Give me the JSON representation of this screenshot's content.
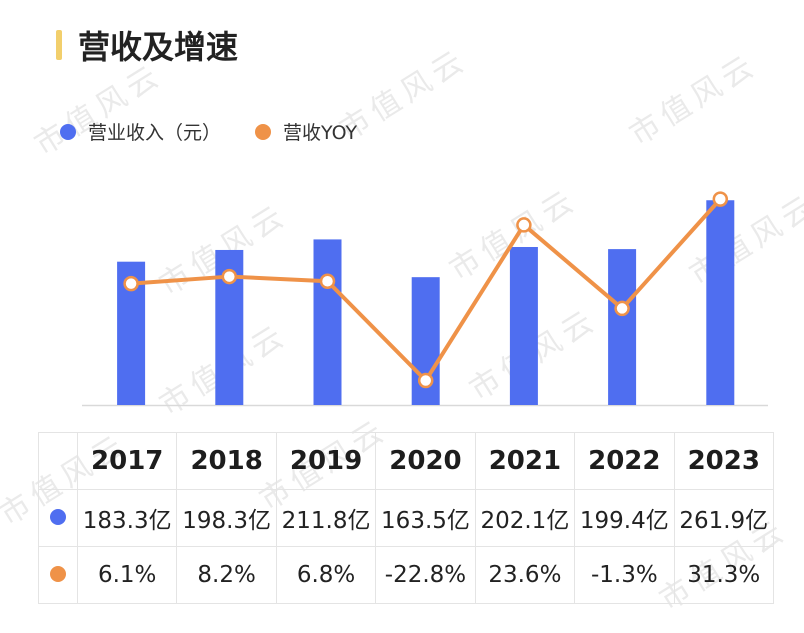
{
  "title": "营收及增速",
  "watermark": "市值风云",
  "colors": {
    "title_accent": "#f2cf6c",
    "bar": "#4f6ef0",
    "line": "#ef9248",
    "point_fill": "#ffffff"
  },
  "legend": [
    {
      "label": "营业收入（元）",
      "color": "#4f6ef0"
    },
    {
      "label": "营收YOY",
      "color": "#ef9248"
    }
  ],
  "chart_data": {
    "type": "bar",
    "categories": [
      "2017",
      "2018",
      "2019",
      "2020",
      "2021",
      "2022",
      "2023"
    ],
    "series": [
      {
        "name": "营业收入（元）",
        "type": "bar",
        "values": [
          183.3,
          198.3,
          211.8,
          163.5,
          202.1,
          199.4,
          261.9
        ],
        "unit": "亿"
      },
      {
        "name": "营收YOY",
        "type": "line",
        "values": [
          6.1,
          8.2,
          6.8,
          -22.8,
          23.6,
          -1.3,
          31.3
        ],
        "unit": "%"
      }
    ],
    "ylim": [
      0,
      275
    ],
    "y2lim": [
      -31,
      37
    ],
    "legend_position": "top-left",
    "grid": false
  },
  "table": {
    "years": [
      "2017",
      "2018",
      "2019",
      "2020",
      "2021",
      "2022",
      "2023"
    ],
    "revenue_labels": [
      "183.3亿",
      "198.3亿",
      "211.8亿",
      "163.5亿",
      "202.1亿",
      "199.4亿",
      "261.9亿"
    ],
    "yoy_labels": [
      "6.1%",
      "8.2%",
      "6.8%",
      "-22.8%",
      "23.6%",
      "-1.3%",
      "31.3%"
    ]
  }
}
